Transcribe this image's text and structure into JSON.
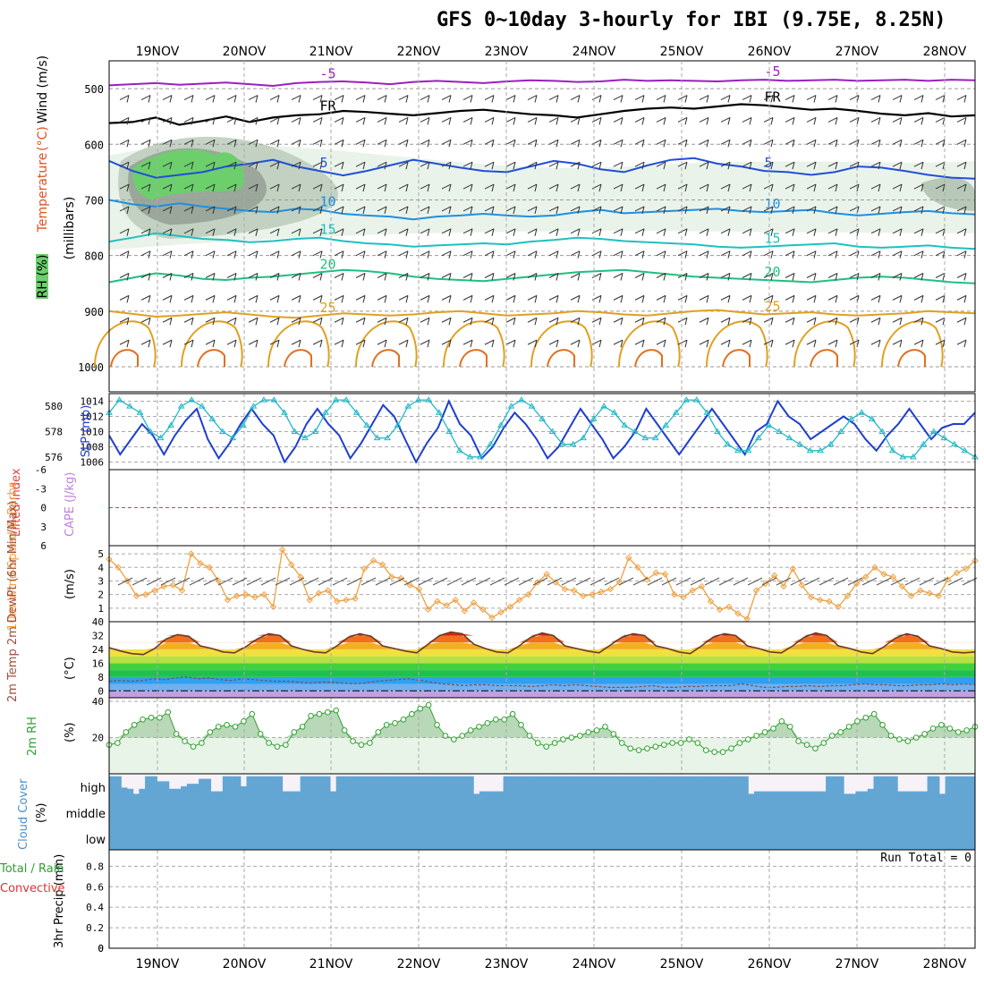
{
  "title": "GFS 0~10day 3-hourly for IBI (9.75E, 8.25N)",
  "dates": [
    "19NOV",
    "20NOV",
    "21NOV",
    "22NOV",
    "23NOV",
    "24NOV",
    "25NOV",
    "26NOV",
    "27NOV",
    "28NOV"
  ],
  "chart_data": [
    {
      "type": "contour",
      "panel": "upper-air",
      "ylabel": "(millibars)",
      "yticks": [
        500,
        600,
        700,
        800,
        900,
        1000
      ],
      "side_labels": {
        "rh": "RH (%)",
        "temperature": "Temperature",
        "temp_unit": "(°C)",
        "wind": "Wind (m/s)"
      },
      "rh_levels": {
        "30": "#e8f2e8",
        "50": "#b8c8b8",
        "70": "#909c90",
        "90": "#6ccf6c"
      },
      "isotherms": [
        {
          "label": "-5",
          "color": "#9b1fbf",
          "p": [
            494,
            492,
            490,
            493,
            491,
            489,
            492,
            495,
            490,
            488,
            487,
            489,
            492,
            488,
            486,
            488,
            490,
            487,
            485,
            486,
            488,
            487,
            484,
            486,
            485,
            486,
            487,
            485,
            484,
            486,
            485,
            484,
            486,
            485,
            484,
            486,
            484,
            485
          ]
        },
        {
          "label": "FR",
          "color": "#000000",
          "p": [
            562,
            560,
            552,
            565,
            558,
            550,
            560,
            552,
            548,
            546,
            540,
            542,
            545,
            548,
            544,
            540,
            538,
            542,
            546,
            548,
            552,
            546,
            540,
            536,
            534,
            536,
            532,
            528,
            530,
            534,
            538,
            536,
            540,
            545,
            548,
            544,
            550,
            548
          ]
        },
        {
          "label": "5",
          "color": "#1f4fd8",
          "p": [
            630,
            648,
            660,
            655,
            650,
            640,
            635,
            628,
            640,
            648,
            656,
            648,
            638,
            628,
            635,
            642,
            648,
            650,
            640,
            630,
            635,
            645,
            650,
            638,
            628,
            625,
            635,
            640,
            648,
            650,
            655,
            650,
            640,
            642,
            648,
            655,
            660,
            662
          ]
        },
        {
          "label": "10",
          "color": "#1f8fe0",
          "p": [
            700,
            708,
            712,
            706,
            712,
            716,
            720,
            722,
            716,
            718,
            725,
            728,
            730,
            735,
            730,
            728,
            725,
            728,
            730,
            728,
            722,
            718,
            724,
            722,
            720,
            718,
            716,
            720,
            722,
            720,
            718,
            724,
            728,
            725,
            722,
            720,
            724,
            726
          ]
        },
        {
          "label": "15",
          "color": "#1fc0c0",
          "p": [
            775,
            768,
            760,
            765,
            770,
            772,
            776,
            774,
            770,
            768,
            774,
            778,
            780,
            784,
            782,
            780,
            778,
            780,
            775,
            772,
            768,
            770,
            774,
            776,
            778,
            780,
            784,
            786,
            784,
            782,
            780,
            778,
            784,
            786,
            784,
            782,
            786,
            788
          ]
        },
        {
          "label": "20",
          "color": "#1fbf7f",
          "p": [
            848,
            840,
            832,
            836,
            842,
            844,
            840,
            838,
            834,
            830,
            826,
            828,
            832,
            838,
            842,
            844,
            846,
            842,
            838,
            834,
            830,
            828,
            826,
            830,
            834,
            838,
            840,
            842,
            844,
            846,
            848,
            844,
            840,
            838,
            840,
            844,
            848,
            850
          ]
        },
        {
          "label": "25",
          "color": "#e0a020",
          "p": [
            900,
            905,
            910,
            908,
            905,
            902,
            906,
            910,
            912,
            908,
            904,
            906,
            908,
            906,
            902,
            900,
            904,
            908,
            906,
            904,
            900,
            902,
            906,
            908,
            904,
            900,
            898,
            902,
            906,
            904,
            902,
            906,
            908,
            906,
            904,
            900,
            902,
            904
          ]
        }
      ]
    },
    {
      "type": "line",
      "panel": "slp-thickness",
      "left_label": "1000-500mb Thickness (dm)",
      "right_label": "SLP (mb)",
      "left_ticks": [
        576,
        578,
        580
      ],
      "right_ticks": [
        1006,
        1008,
        1010,
        1012,
        1014
      ],
      "series": [
        {
          "name": "SLP",
          "color": "#1f3fcf",
          "values": [
            1009.5,
            1007,
            1009,
            1011,
            1009.5,
            1007,
            1009.5,
            1011.5,
            1013,
            1009,
            1006.5,
            1008.5,
            1011,
            1013,
            1011,
            1009.5,
            1006,
            1008,
            1011,
            1013,
            1011,
            1009.5,
            1006.5,
            1008.5,
            1011,
            1013.5,
            1012,
            1009,
            1006,
            1008.5,
            1010.5,
            1014,
            1011,
            1009.5,
            1006.5,
            1008,
            1010.5,
            1012.5,
            1011,
            1009,
            1006.5,
            1008,
            1010.5,
            1013,
            1011,
            1009,
            1006.5,
            1008,
            1010,
            1013,
            1011,
            1009,
            1007,
            1009,
            1011,
            1013,
            1011,
            1009,
            1007,
            1010,
            1011,
            1014,
            1012,
            1011,
            1009,
            1010,
            1011,
            1012,
            1011,
            1009,
            1007.5,
            1009.5,
            1011,
            1013,
            1011,
            1009,
            1010.5,
            1011,
            1011,
            1012.5
          ]
        },
        {
          "name": "Thickness",
          "color": "#20b8c8",
          "values": [
            579.5,
            580.5,
            580,
            579.5,
            578,
            577.5,
            578.5,
            580,
            580.5,
            580,
            579,
            578,
            577.5,
            578.5,
            580,
            580.5,
            580.5,
            579.5,
            578,
            577.5,
            578,
            579.5,
            580.5,
            580.5,
            579.5,
            578.5,
            577.5,
            577.5,
            578.5,
            580,
            580.5,
            580.5,
            579.5,
            578,
            576.5,
            576,
            576,
            577,
            578.5,
            580,
            580.5,
            580,
            579,
            578,
            577,
            577,
            577.5,
            579,
            580,
            579.5,
            578.5,
            578,
            577.5,
            577.5,
            578.5,
            579.5,
            580.5,
            580.5,
            579.5,
            578,
            577,
            576.5,
            576.5,
            577.5,
            578.5,
            578,
            577.5,
            577,
            576.5,
            576.5,
            577,
            578,
            579,
            579.5,
            579,
            578,
            576.5,
            576,
            576,
            577,
            578,
            577.5,
            577,
            576.5,
            576
          ]
        }
      ]
    },
    {
      "type": "line",
      "panel": "lifted-index-cape",
      "left_label": "Lifted Index",
      "right_label": "CAPE (J/kg)",
      "yticks": [
        -6,
        -3,
        0,
        3,
        6
      ],
      "values": []
    },
    {
      "type": "line",
      "panel": "10m-wind",
      "label": "10m Wind Speed & Barbs",
      "unit": "(m/s)",
      "yticks": [
        1,
        2,
        3,
        4,
        5
      ],
      "series": [
        {
          "name": "Wind Speed",
          "color": "#f0a040",
          "values": [
            4.6,
            4.0,
            3.0,
            1.9,
            2.0,
            2.3,
            2.6,
            2.7,
            2.3,
            5.0,
            4.3,
            4.0,
            3.0,
            1.6,
            1.9,
            2.0,
            1.8,
            2.0,
            1.1,
            5.3,
            4.2,
            3.3,
            1.6,
            2.1,
            2.3,
            1.5,
            1.6,
            1.7,
            3.9,
            4.5,
            4.2,
            3.3,
            3.2,
            2.7,
            2.4,
            0.9,
            1.5,
            1.2,
            1.6,
            0.8,
            1.4,
            0.9,
            0.3,
            0.7,
            1.1,
            1.6,
            2.0,
            2.9,
            3.5,
            2.9,
            2.4,
            2.3,
            1.9,
            2.0,
            2.2,
            2.4,
            2.9,
            4.7,
            4.0,
            3.1,
            3.6,
            3.5,
            2.0,
            1.8,
            2.3,
            2.6,
            1.5,
            0.9,
            1.1,
            0.6,
            0.2,
            2.3,
            2.8,
            3.4,
            2.6,
            3.9,
            2.7,
            1.8,
            1.6,
            1.5,
            1.1,
            1.9,
            2.8,
            3.3,
            4.0,
            3.5,
            3.3,
            2.6,
            1.9,
            2.3,
            2.1,
            1.9,
            3.1,
            3.6,
            3.9,
            4.5
          ]
        }
      ]
    },
    {
      "type": "area",
      "panel": "temperature",
      "label": "2m Temp 2m DewPt (6hr Min/Max)",
      "unit": "(°C)",
      "yticks": [
        0,
        8,
        16,
        24,
        32,
        40
      ],
      "series": [
        {
          "name": "2m Temp",
          "values": [
            25,
            23,
            21.5,
            21,
            24.5,
            30,
            32.5,
            31.5,
            26,
            24.5,
            22.5,
            22,
            25.5,
            30,
            33,
            32,
            26,
            24,
            22.5,
            22,
            26,
            31,
            33,
            31.5,
            26,
            24.5,
            23,
            22,
            27,
            32,
            34,
            33,
            27,
            24.5,
            22.5,
            22,
            26,
            31,
            33.5,
            32,
            26,
            24.5,
            23,
            22,
            26.5,
            31,
            33,
            32,
            26,
            24.5,
            22.5,
            21.5,
            26,
            31,
            33,
            32,
            26,
            24.5,
            22.5,
            22,
            26,
            31,
            33.5,
            32,
            26,
            24.5,
            22.5,
            21.5,
            25.5,
            30.5,
            33,
            31.5,
            26,
            24.5,
            22.5,
            22,
            22.5
          ]
        },
        {
          "name": "2m DewPt",
          "values": [
            5.5,
            6,
            5.5,
            6,
            7,
            6.5,
            7.5,
            8,
            7,
            7.5,
            6.5,
            6,
            7,
            6.5,
            6,
            5.5,
            5.5,
            5,
            4.5,
            5,
            5,
            4.5,
            4,
            4.5,
            5.5,
            6,
            6.5,
            7,
            6,
            5,
            4,
            3.5,
            3,
            3.5,
            3.5,
            3,
            3,
            3,
            2.5,
            3,
            3.5,
            3,
            3.5,
            3,
            2.5,
            2,
            2,
            2,
            2.5,
            3,
            2,
            2,
            2.5,
            2.5,
            3,
            3,
            3,
            4,
            3,
            2,
            2,
            2.5,
            2.5,
            3,
            2.5,
            3,
            3,
            3.5,
            4,
            3.5,
            3.5,
            3,
            3,
            3.5,
            3.5,
            4,
            3.5,
            4,
            3.5
          ]
        }
      ],
      "bands": [
        {
          "from": -4,
          "to": 0,
          "color": "#c0a0e0"
        },
        {
          "from": 0,
          "to": 4,
          "color": "#70b0f0"
        },
        {
          "from": 4,
          "to": 8,
          "color": "#30a0f0"
        },
        {
          "from": 8,
          "to": 12,
          "color": "#20c050"
        },
        {
          "from": 12,
          "to": 16,
          "color": "#40d040"
        },
        {
          "from": 16,
          "to": 20,
          "color": "#b8e040"
        },
        {
          "from": 20,
          "to": 24,
          "color": "#f0e040"
        },
        {
          "from": 24,
          "to": 28,
          "color": "#f0b020"
        },
        {
          "from": 28,
          "to": 32,
          "color": "#f07020"
        },
        {
          "from": 32,
          "to": 36,
          "color": "#e02010"
        }
      ]
    },
    {
      "type": "area",
      "panel": "2m-rh",
      "label": "2m RH",
      "unit": "(%)",
      "yticks": [
        20,
        40
      ],
      "values": [
        16,
        17,
        23,
        27,
        30,
        31,
        31,
        34,
        22,
        18,
        15,
        17,
        23,
        26,
        27,
        26,
        29,
        33,
        22,
        17,
        15,
        16,
        23,
        26,
        32,
        33,
        34,
        35,
        24,
        18,
        16,
        17,
        23,
        27,
        28,
        30,
        33,
        36,
        38,
        27,
        21,
        19,
        21,
        24,
        26,
        28,
        30,
        30,
        33,
        27,
        21,
        17,
        15,
        17,
        19,
        20,
        21,
        23,
        24,
        26,
        22,
        17,
        14,
        13,
        14,
        15,
        16,
        17,
        17,
        19,
        17,
        13,
        12,
        12,
        14,
        17,
        19,
        21,
        23,
        25,
        29,
        26,
        18,
        16,
        14,
        17,
        21,
        23,
        26,
        29,
        31,
        33,
        27,
        21,
        19,
        18,
        20,
        22,
        25,
        27,
        25,
        23,
        24,
        26
      ]
    },
    {
      "type": "bar",
      "panel": "cloud-cover",
      "label": "Cloud Cover",
      "unit": "(%)",
      "yticks": [
        "high",
        "middle",
        "low"
      ],
      "high": [
        90,
        90,
        45,
        40,
        20,
        40,
        90,
        90,
        70,
        70,
        40,
        40,
        50,
        60,
        60,
        80,
        80,
        30,
        30,
        90,
        90,
        90,
        50,
        90,
        90,
        90,
        90,
        90,
        90,
        30,
        30,
        30,
        90,
        90,
        90,
        90,
        90,
        30,
        90,
        90,
        90,
        90,
        90,
        90,
        90,
        90,
        90,
        90,
        90,
        90,
        90,
        90,
        90,
        90,
        90,
        90,
        90,
        90,
        90,
        90,
        90,
        20,
        30,
        30,
        30,
        30,
        90,
        90,
        90,
        90,
        90,
        90,
        90,
        90,
        90,
        90,
        90,
        90,
        90,
        90,
        90,
        90,
        90,
        90,
        90,
        90,
        90,
        90,
        90,
        90,
        90,
        90,
        90,
        90,
        90,
        90,
        90,
        90,
        90,
        90,
        90,
        90,
        90,
        90,
        90,
        90,
        90,
        20,
        30,
        30,
        30,
        30,
        30,
        30,
        30,
        30,
        30,
        30,
        30,
        30,
        90,
        90,
        90,
        20,
        20,
        30,
        30,
        40,
        90,
        90,
        90,
        90,
        30,
        30,
        30,
        30,
        30,
        90,
        90,
        20,
        90,
        90,
        90,
        90,
        90
      ],
      "middle_full": true,
      "low_full": true
    },
    {
      "type": "bar",
      "panel": "precip",
      "label": "3hr Precip (mm)",
      "left_labels": [
        "Total / Rain",
        "Convective"
      ],
      "yticks": [
        0,
        0.2,
        0.4,
        0.6,
        0.8
      ],
      "run_total": "Run Total = 0",
      "values": []
    }
  ]
}
